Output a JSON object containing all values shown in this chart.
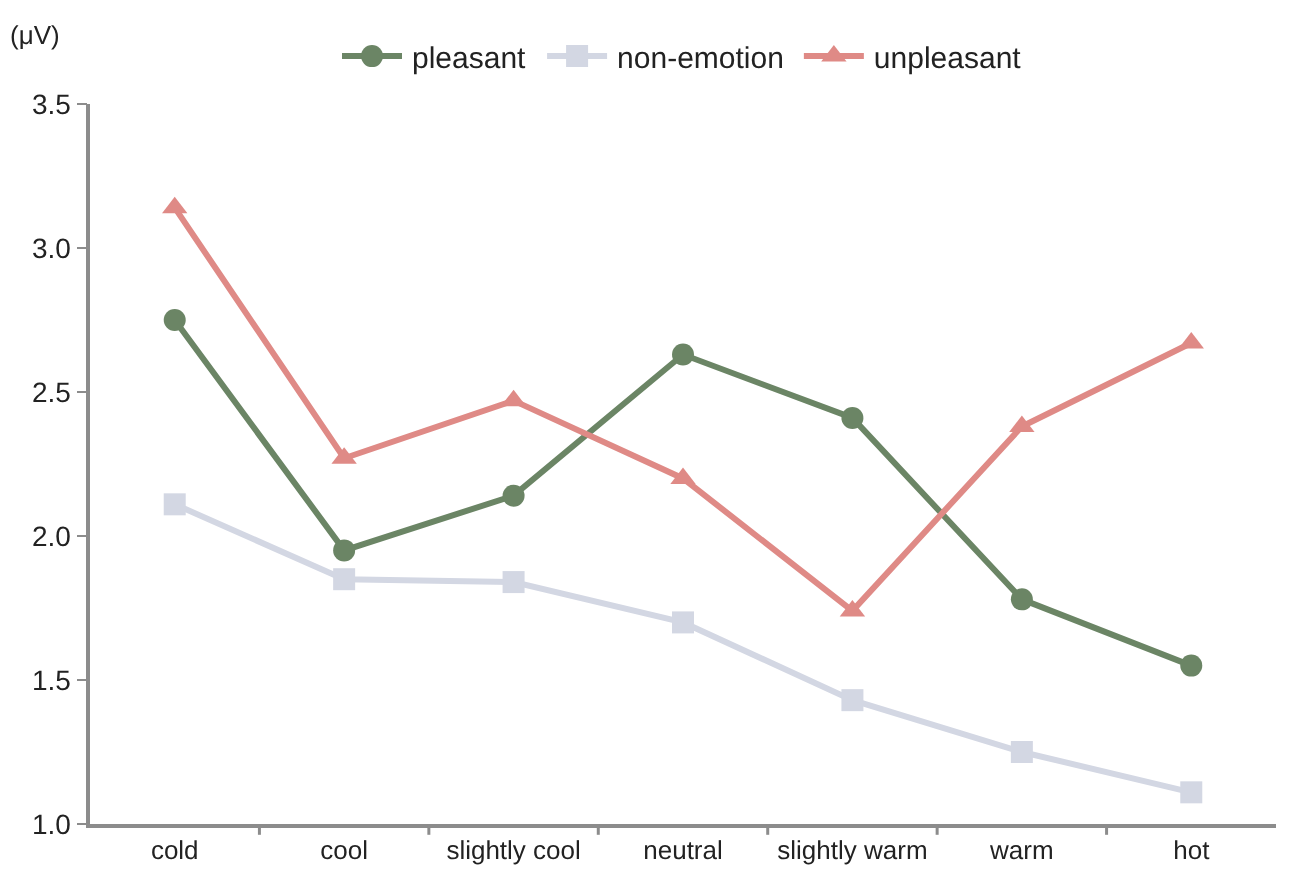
{
  "chart_data": {
    "type": "line",
    "ylabel": "(μV)",
    "categories": [
      "cold",
      "cool",
      "slightly cool",
      "neutral",
      "slightly warm",
      "warm",
      "hot"
    ],
    "series": [
      {
        "name": "pleasant",
        "color": "#6b8565",
        "marker": "circle",
        "values": [
          2.75,
          1.95,
          2.14,
          2.63,
          2.41,
          1.78,
          1.55
        ]
      },
      {
        "name": "non-emotion",
        "color": "#d3d7e3",
        "marker": "square",
        "values": [
          2.11,
          1.85,
          1.84,
          1.7,
          1.43,
          1.25,
          1.11
        ]
      },
      {
        "name": "unpleasant",
        "color": "#df8a86",
        "marker": "triangle",
        "values": [
          3.14,
          2.27,
          2.47,
          2.2,
          1.74,
          2.38,
          2.67
        ]
      }
    ],
    "ylim": [
      1.0,
      3.5
    ],
    "yticks": [
      {
        "value": 1.0,
        "label": "1.0"
      },
      {
        "value": 1.5,
        "label": "1.5"
      },
      {
        "value": 2.0,
        "label": "2.0"
      },
      {
        "value": 2.5,
        "label": "2.5"
      },
      {
        "value": 3.0,
        "label": "3.0"
      },
      {
        "value": 3.5,
        "label": "3.5"
      }
    ],
    "legend": "top",
    "line_style": "solid"
  }
}
